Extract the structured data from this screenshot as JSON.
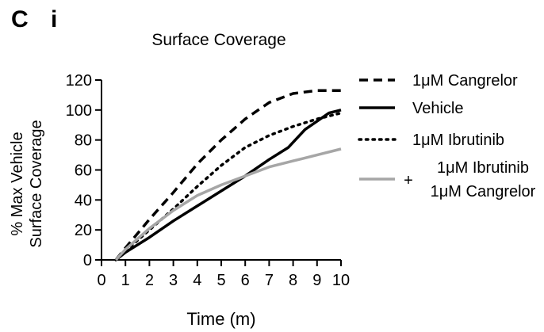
{
  "panel_label": "C i",
  "chart_data": {
    "type": "line",
    "title": "Surface Coverage",
    "xlabel": "Time (m)",
    "ylabel_lines": [
      "% Max Vehicle",
      "Surface Coverage"
    ],
    "xlim": [
      0,
      10
    ],
    "ylim": [
      0,
      120
    ],
    "x_ticks": [
      0,
      1,
      2,
      3,
      4,
      5,
      6,
      7,
      8,
      9,
      10
    ],
    "y_ticks": [
      0,
      20,
      40,
      60,
      80,
      100,
      120
    ],
    "grid": false,
    "legend_position": "right",
    "series": [
      {
        "name_lines": [
          "1μM Cangrelor"
        ],
        "color": "#000000",
        "style": "dashed",
        "x": [
          0.6,
          1,
          2,
          3,
          4,
          5,
          6,
          7,
          8,
          9,
          10
        ],
        "y": [
          0,
          8,
          27,
          45,
          64,
          80,
          94,
          105,
          111,
          113,
          113
        ]
      },
      {
        "name_lines": [
          "Vehicle"
        ],
        "color": "#000000",
        "style": "solid",
        "x": [
          0.6,
          1,
          2,
          3,
          4,
          5,
          6,
          7,
          7.8,
          8.5,
          9.5,
          10
        ],
        "y": [
          0,
          5,
          15,
          26,
          36,
          46,
          56,
          67,
          75,
          87,
          98,
          100
        ]
      },
      {
        "name_lines": [
          "1μM Ibrutinib"
        ],
        "color": "#000000",
        "style": "dotted",
        "x": [
          0.6,
          1,
          2,
          3,
          4,
          5,
          6,
          7,
          8,
          9,
          10
        ],
        "y": [
          0,
          6,
          20,
          34,
          49,
          63,
          75,
          83,
          89,
          94,
          98
        ]
      },
      {
        "name_lines": [
          "1μM Ibrutinib",
          "1μM Cangrelor"
        ],
        "name_prefix": "+",
        "color": "#a6a6a6",
        "style": "solid",
        "x": [
          0.6,
          1,
          2,
          3,
          4,
          5,
          6,
          7,
          8,
          9,
          10
        ],
        "y": [
          0,
          7,
          21,
          33,
          43,
          50,
          56,
          62,
          66,
          70,
          74
        ]
      }
    ]
  }
}
